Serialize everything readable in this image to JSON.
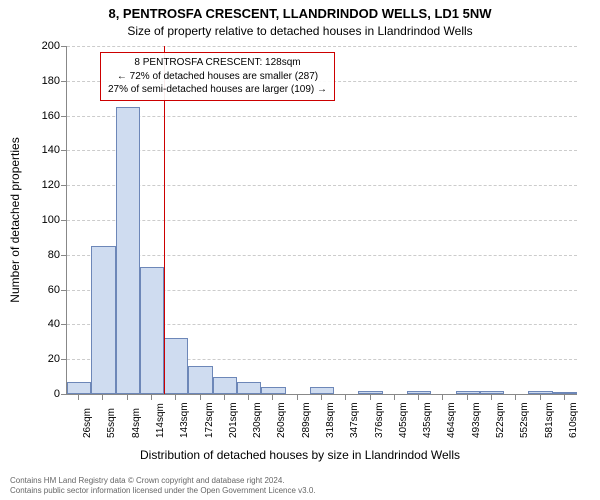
{
  "title_main": "8, PENTROSFA CRESCENT, LLANDRINDOD WELLS, LD1 5NW",
  "title_sub": "Size of property relative to detached houses in Llandrindod Wells",
  "y_axis": {
    "label": "Number of detached properties",
    "min": 0,
    "max": 200,
    "step": 20
  },
  "x_axis": {
    "label": "Distribution of detached houses by size in Llandrindod Wells",
    "categories": [
      "26sqm",
      "55sqm",
      "84sqm",
      "114sqm",
      "143sqm",
      "172sqm",
      "201sqm",
      "230sqm",
      "260sqm",
      "289sqm",
      "318sqm",
      "347sqm",
      "376sqm",
      "405sqm",
      "435sqm",
      "464sqm",
      "493sqm",
      "522sqm",
      "552sqm",
      "581sqm",
      "610sqm"
    ]
  },
  "chart": {
    "type": "histogram",
    "values": [
      7,
      85,
      165,
      73,
      32,
      16,
      10,
      7,
      4,
      0,
      4,
      0,
      2,
      0,
      2,
      0,
      2,
      2,
      0,
      2,
      1
    ],
    "bar_fill": "#cfdcf0",
    "bar_stroke": "#6d87b8",
    "grid_color": "#cccccc",
    "background": "#ffffff",
    "bar_width_ratio": 1.0
  },
  "marker": {
    "value_sqm": 128,
    "color": "#cc0000",
    "callout": {
      "line1": "8 PENTROSFA CRESCENT: 128sqm",
      "line2": "← 72% of detached houses are smaller (287)",
      "line3": "27% of semi-detached houses are larger (109) →"
    }
  },
  "footer": {
    "line1": "Contains HM Land Registry data © Crown copyright and database right 2024.",
    "line2": "Contains public sector information licensed under the Open Government Licence v3.0."
  }
}
